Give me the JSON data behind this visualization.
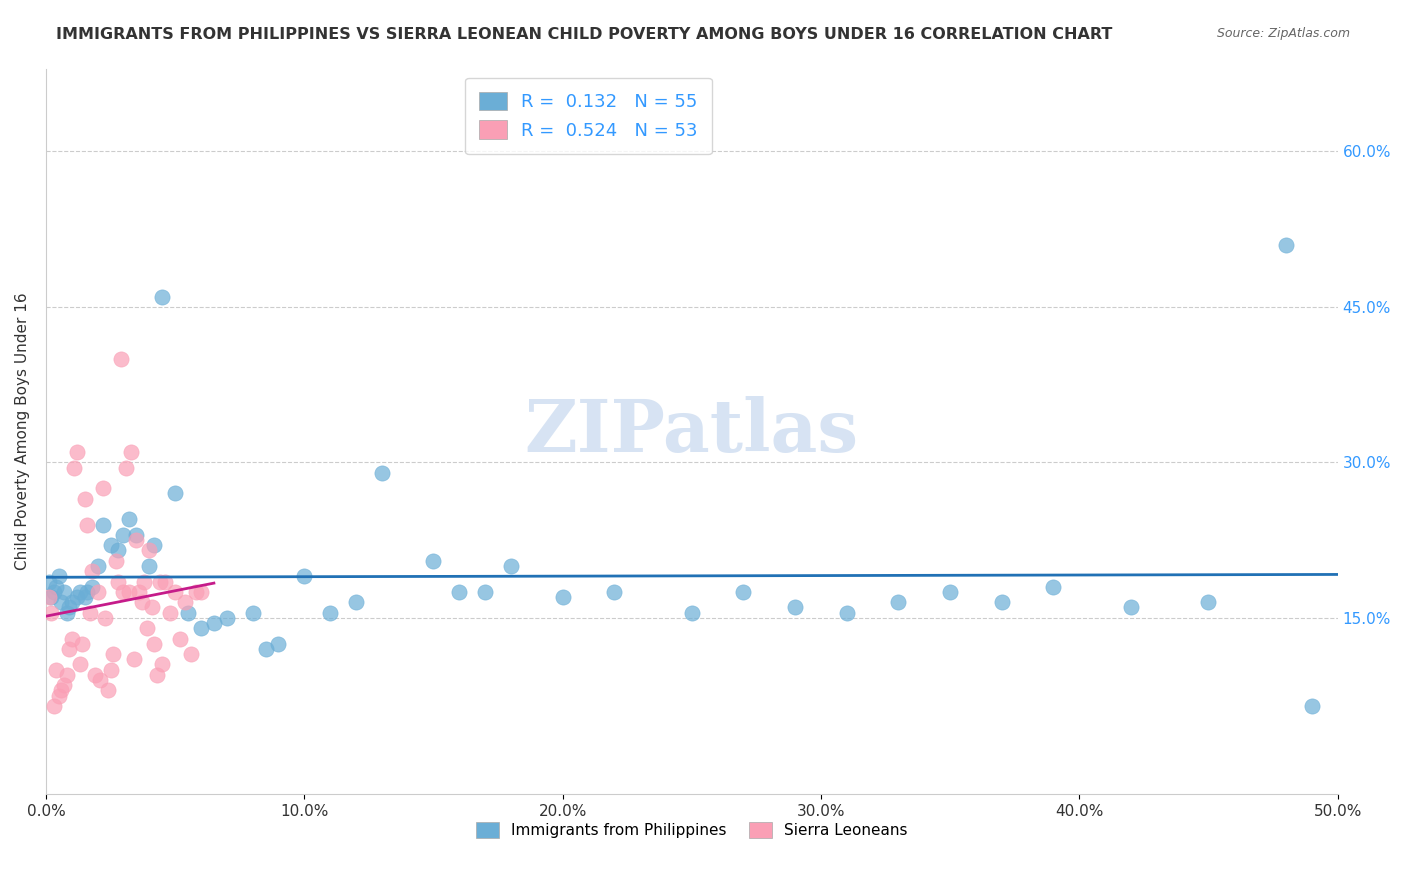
{
  "title": "IMMIGRANTS FROM PHILIPPINES VS SIERRA LEONEAN CHILD POVERTY AMONG BOYS UNDER 16 CORRELATION CHART",
  "source": "Source: ZipAtlas.com",
  "xlabel_bottom": "",
  "ylabel": "Child Poverty Among Boys Under 16",
  "x_tick_labels": [
    "0.0%",
    "10.0%",
    "20.0%",
    "30.0%",
    "40.0%",
    "50.0%"
  ],
  "y_tick_labels": [
    "15.0%",
    "30.0%",
    "45.0%",
    "60.0%"
  ],
  "xlim": [
    0,
    0.5
  ],
  "ylim": [
    -0.02,
    0.68
  ],
  "legend_label1": "Immigrants from Philippines",
  "legend_label2": "Sierra Leoneans",
  "R1": 0.132,
  "N1": 55,
  "R2": 0.524,
  "N2": 53,
  "blue_color": "#6baed6",
  "pink_color": "#fa9fb5",
  "blue_line_color": "#2171b5",
  "pink_line_color": "#c51b8a",
  "watermark": "ZIPatlas",
  "watermark_color": "#b0c8e8",
  "blue_dots_x": [
    0.001,
    0.002,
    0.003,
    0.004,
    0.005,
    0.006,
    0.007,
    0.008,
    0.009,
    0.01,
    0.012,
    0.013,
    0.015,
    0.016,
    0.018,
    0.02,
    0.022,
    0.025,
    0.028,
    0.03,
    0.032,
    0.035,
    0.04,
    0.042,
    0.045,
    0.05,
    0.055,
    0.06,
    0.065,
    0.07,
    0.08,
    0.085,
    0.09,
    0.1,
    0.11,
    0.12,
    0.13,
    0.15,
    0.16,
    0.17,
    0.18,
    0.2,
    0.22,
    0.25,
    0.27,
    0.29,
    0.31,
    0.33,
    0.35,
    0.37,
    0.39,
    0.42,
    0.45,
    0.48,
    0.49
  ],
  "blue_dots_y": [
    0.185,
    0.17,
    0.175,
    0.18,
    0.19,
    0.165,
    0.175,
    0.155,
    0.16,
    0.165,
    0.17,
    0.175,
    0.17,
    0.175,
    0.18,
    0.2,
    0.24,
    0.22,
    0.215,
    0.23,
    0.245,
    0.23,
    0.2,
    0.22,
    0.46,
    0.27,
    0.155,
    0.14,
    0.145,
    0.15,
    0.155,
    0.12,
    0.125,
    0.19,
    0.155,
    0.165,
    0.29,
    0.205,
    0.175,
    0.175,
    0.2,
    0.17,
    0.175,
    0.155,
    0.175,
    0.16,
    0.155,
    0.165,
    0.175,
    0.165,
    0.18,
    0.16,
    0.165,
    0.51,
    0.065
  ],
  "pink_dots_x": [
    0.001,
    0.002,
    0.003,
    0.004,
    0.005,
    0.006,
    0.007,
    0.008,
    0.009,
    0.01,
    0.011,
    0.012,
    0.013,
    0.014,
    0.015,
    0.016,
    0.017,
    0.018,
    0.019,
    0.02,
    0.021,
    0.022,
    0.023,
    0.024,
    0.025,
    0.026,
    0.027,
    0.028,
    0.029,
    0.03,
    0.031,
    0.032,
    0.033,
    0.034,
    0.035,
    0.036,
    0.037,
    0.038,
    0.039,
    0.04,
    0.041,
    0.042,
    0.043,
    0.044,
    0.045,
    0.046,
    0.048,
    0.05,
    0.052,
    0.054,
    0.056,
    0.058,
    0.06
  ],
  "pink_dots_y": [
    0.17,
    0.155,
    0.065,
    0.1,
    0.075,
    0.08,
    0.085,
    0.095,
    0.12,
    0.13,
    0.295,
    0.31,
    0.105,
    0.125,
    0.265,
    0.24,
    0.155,
    0.195,
    0.095,
    0.175,
    0.09,
    0.275,
    0.15,
    0.08,
    0.1,
    0.115,
    0.205,
    0.185,
    0.4,
    0.175,
    0.295,
    0.175,
    0.31,
    0.11,
    0.225,
    0.175,
    0.165,
    0.185,
    0.14,
    0.215,
    0.16,
    0.125,
    0.095,
    0.185,
    0.105,
    0.185,
    0.155,
    0.175,
    0.13,
    0.165,
    0.115,
    0.175,
    0.175
  ]
}
